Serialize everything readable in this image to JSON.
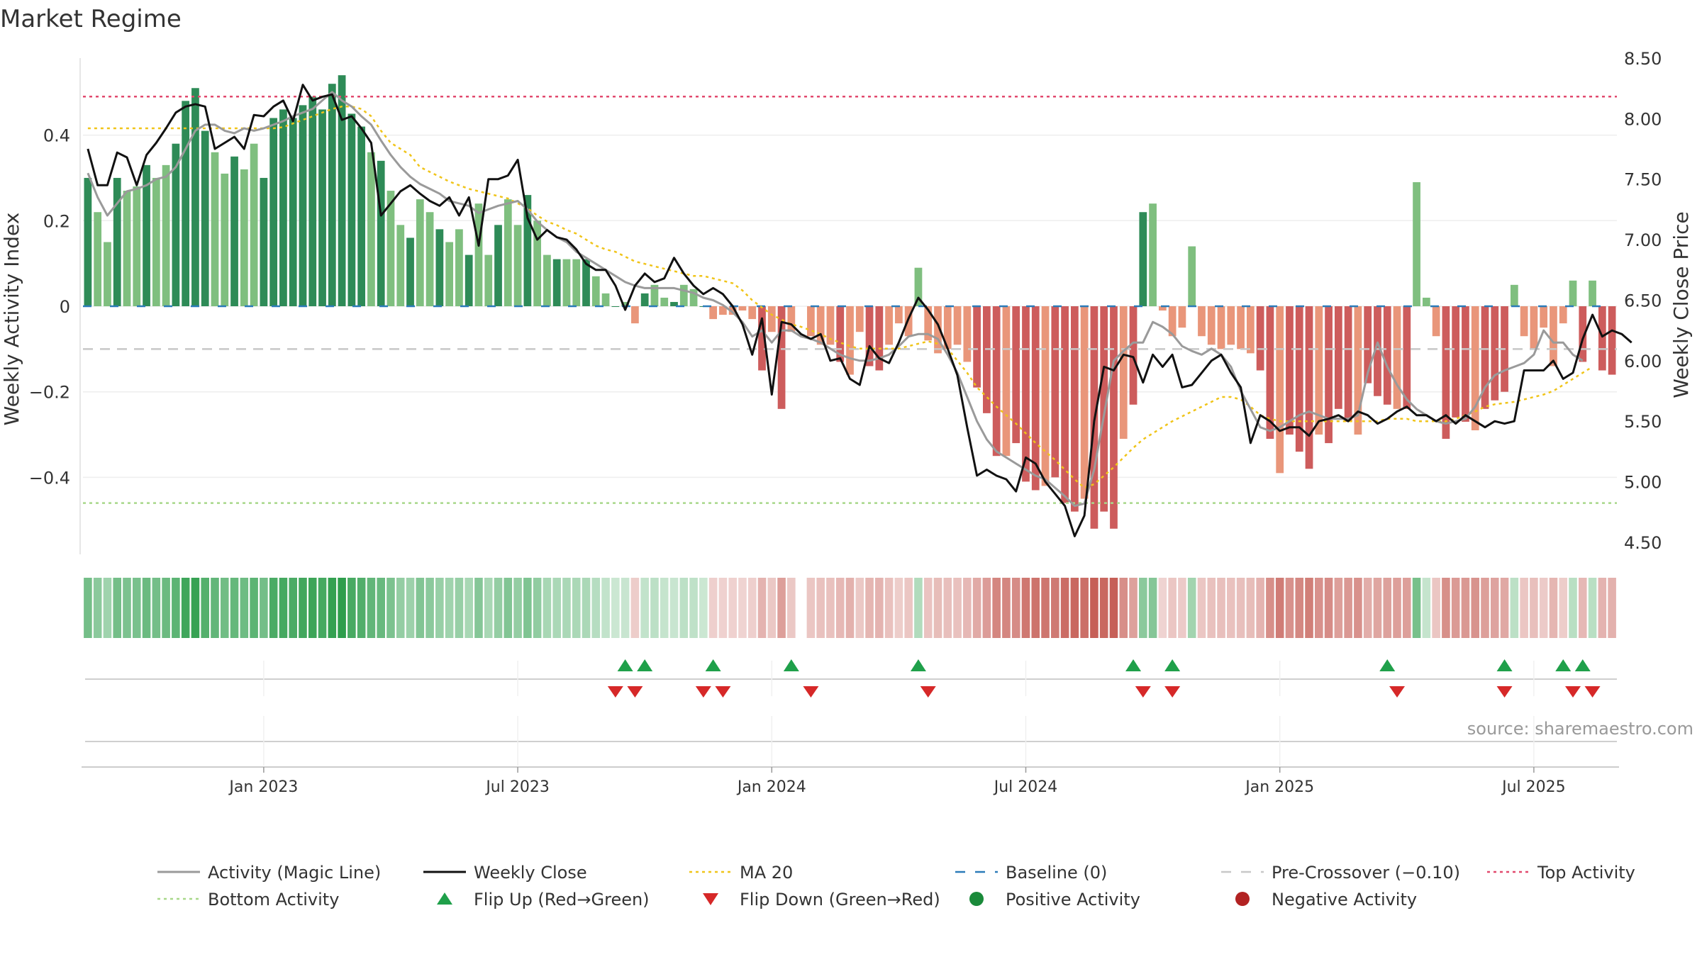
{
  "chart_data": {
    "type": "bar",
    "title": "Market Regime",
    "ylabel": "Weekly Activity Index",
    "y2label": "Weekly Close Price",
    "ylim": [
      -0.58,
      0.58
    ],
    "y2lim": [
      4.4,
      8.5
    ],
    "yticks": [
      0.4,
      0.2,
      0,
      -0.2,
      -0.4
    ],
    "yticklabels": [
      "0.4",
      "0.2",
      "0",
      "−0.2",
      "−0.4"
    ],
    "y2ticks": [
      8.5,
      8.0,
      7.5,
      7.0,
      6.5,
      6.0,
      5.5,
      5.0,
      4.5
    ],
    "y2ticklabels": [
      "8.50",
      "8.00",
      "7.50",
      "7.00",
      "6.50",
      "6.00",
      "5.50",
      "5.00",
      "4.50"
    ],
    "xticks": [
      {
        "week": 18,
        "label": "Jan 2023"
      },
      {
        "week": 44,
        "label": "Jul 2023"
      },
      {
        "week": 70,
        "label": "Jan 2024"
      },
      {
        "week": 96,
        "label": "Jul 2024"
      },
      {
        "week": 122,
        "label": "Jan 2025"
      },
      {
        "week": 148,
        "label": "Jul 2025"
      }
    ],
    "top_activity": 0.49,
    "bottom_activity": -0.46,
    "pre_crossover": -0.1,
    "baseline": 0,
    "activity": [
      0.3,
      0.22,
      0.15,
      0.3,
      0.27,
      0.28,
      0.33,
      0.3,
      0.33,
      0.38,
      0.48,
      0.51,
      0.41,
      0.36,
      0.31,
      0.35,
      0.32,
      0.38,
      0.3,
      0.44,
      0.46,
      0.44,
      0.47,
      0.49,
      0.46,
      0.52,
      0.54,
      0.45,
      0.42,
      0.36,
      0.34,
      0.27,
      0.19,
      0.16,
      0.25,
      0.22,
      0.18,
      0.15,
      0.18,
      0.12,
      0.24,
      0.12,
      0.19,
      0.25,
      0.19,
      0.26,
      0.2,
      0.12,
      0.11,
      0.11,
      0.11,
      0.11,
      0.07,
      0.03,
      0.0,
      0.01,
      -0.04,
      0.03,
      0.05,
      0.02,
      0.01,
      0.05,
      0.04,
      0.0,
      -0.03,
      -0.02,
      -0.02,
      -0.01,
      -0.03,
      -0.15,
      -0.06,
      -0.24,
      -0.06,
      0.04,
      -0.07,
      -0.09,
      -0.09,
      -0.13,
      -0.16,
      -0.06,
      -0.14,
      -0.15,
      -0.09,
      -0.04,
      -0.07,
      0.09,
      -0.08,
      -0.11,
      -0.1,
      -0.09,
      -0.13,
      -0.19,
      -0.25,
      -0.35,
      -0.35,
      -0.32,
      -0.41,
      -0.43,
      -0.42,
      -0.4,
      -0.46,
      -0.48,
      -0.45,
      -0.52,
      -0.48,
      -0.52,
      -0.31,
      -0.23,
      0.22,
      0.24,
      -0.01,
      -0.07,
      -0.05,
      0.14,
      -0.07,
      -0.09,
      -0.1,
      -0.09,
      -0.1,
      -0.11,
      -0.15,
      -0.31,
      -0.39,
      -0.3,
      -0.34,
      -0.38,
      -0.3,
      -0.32,
      -0.24,
      -0.27,
      -0.3,
      -0.18,
      -0.21,
      -0.23,
      -0.24,
      -0.24,
      0.29,
      0.02,
      -0.07,
      -0.31,
      -0.26,
      -0.27,
      -0.29,
      -0.24,
      -0.22,
      -0.2,
      0.05,
      -0.07,
      -0.1,
      -0.05,
      -0.14,
      -0.04,
      0.06,
      -0.13,
      0.06,
      -0.15,
      -0.16
    ],
    "close": [
      7.75,
      7.45,
      7.45,
      7.72,
      7.68,
      7.45,
      7.7,
      7.8,
      7.92,
      8.05,
      8.1,
      8.12,
      8.1,
      7.75,
      7.8,
      7.85,
      7.75,
      8.03,
      8.02,
      8.1,
      8.15,
      7.98,
      8.28,
      8.15,
      8.18,
      8.2,
      7.99,
      8.02,
      7.92,
      7.8,
      7.2,
      7.3,
      7.4,
      7.45,
      7.38,
      7.32,
      7.28,
      7.35,
      7.2,
      7.35,
      6.95,
      7.5,
      7.5,
      7.53,
      7.66,
      7.18,
      7.0,
      7.08,
      7.02,
      7.0,
      6.92,
      6.8,
      6.75,
      6.75,
      6.62,
      6.42,
      6.62,
      6.72,
      6.65,
      6.68,
      6.85,
      6.72,
      6.62,
      6.55,
      6.6,
      6.55,
      6.45,
      6.3,
      6.05,
      6.35,
      5.72,
      6.32,
      6.3,
      6.22,
      6.18,
      6.22,
      6.0,
      6.02,
      5.85,
      5.8,
      6.12,
      6.02,
      5.98,
      6.15,
      6.35,
      6.52,
      6.42,
      6.3,
      6.1,
      5.88,
      5.45,
      5.05,
      5.1,
      5.05,
      5.02,
      4.92,
      5.2,
      5.15,
      5.0,
      4.9,
      4.8,
      4.55,
      4.72,
      5.5,
      5.95,
      5.92,
      6.05,
      6.03,
      5.82,
      6.05,
      5.95,
      6.05,
      5.78,
      5.8,
      5.9,
      6.0,
      6.05,
      5.9,
      5.78,
      5.32,
      5.55,
      5.5,
      5.42,
      5.45,
      5.45,
      5.38,
      5.5,
      5.52,
      5.55,
      5.5,
      5.58,
      5.55,
      5.48,
      5.52,
      5.58,
      5.62,
      5.55,
      5.55,
      5.5,
      5.55,
      5.48,
      5.55,
      5.5,
      5.45,
      5.5,
      5.48,
      5.5,
      5.92,
      5.92,
      5.92,
      6.0,
      5.85,
      5.9,
      6.18,
      6.38,
      6.2,
      6.25,
      6.22,
      6.15
    ],
    "magic": [
      7.55,
      7.35,
      7.2,
      7.3,
      7.4,
      7.42,
      7.45,
      7.5,
      7.52,
      7.6,
      7.75,
      7.9,
      7.95,
      7.95,
      7.9,
      7.88,
      7.92,
      7.9,
      7.92,
      7.95,
      7.98,
      8.02,
      8.05,
      8.08,
      8.15,
      8.22,
      8.15,
      8.1,
      8.02,
      7.95,
      7.82,
      7.7,
      7.6,
      7.52,
      7.46,
      7.42,
      7.38,
      7.32,
      7.3,
      7.28,
      7.22,
      7.25,
      7.28,
      7.3,
      7.32,
      7.25,
      7.15,
      7.08,
      7.02,
      6.98,
      6.9,
      6.85,
      6.8,
      6.75,
      6.7,
      6.65,
      6.62,
      6.6,
      6.6,
      6.6,
      6.6,
      6.58,
      6.56,
      6.52,
      6.5,
      6.46,
      6.4,
      6.32,
      6.2,
      6.25,
      6.15,
      6.25,
      6.25,
      6.2,
      6.18,
      6.15,
      6.1,
      6.05,
      6.02,
      6.0,
      6.0,
      6.02,
      6.05,
      6.12,
      6.2,
      6.22,
      6.22,
      6.18,
      6.05,
      5.9,
      5.7,
      5.5,
      5.35,
      5.25,
      5.2,
      5.15,
      5.1,
      5.05,
      5.02,
      4.95,
      4.88,
      4.8,
      4.82,
      5.1,
      5.55,
      6.0,
      6.08,
      6.15,
      6.15,
      6.32,
      6.28,
      6.22,
      6.12,
      6.08,
      6.05,
      6.1,
      6.05,
      5.95,
      5.75,
      5.6,
      5.45,
      5.42,
      5.45,
      5.5,
      5.55,
      5.58,
      5.55,
      5.52,
      5.52,
      5.52,
      5.55,
      5.9,
      6.15,
      5.95,
      5.8,
      5.68,
      5.6,
      5.55,
      5.5,
      5.48,
      5.5,
      5.52,
      5.62,
      5.78,
      5.88,
      5.92,
      5.95,
      5.98,
      6.05,
      6.25,
      6.15,
      6.15,
      6.05,
      6.0
    ],
    "ma20": [
      7.92,
      7.92,
      7.92,
      7.92,
      7.92,
      7.92,
      7.92,
      7.92,
      7.92,
      7.92,
      7.92,
      7.92,
      7.92,
      7.92,
      7.92,
      7.92,
      7.92,
      7.92,
      7.92,
      7.92,
      7.93,
      7.96,
      7.99,
      8.02,
      8.05,
      8.08,
      8.1,
      8.1,
      8.08,
      8.02,
      7.9,
      7.8,
      7.75,
      7.7,
      7.6,
      7.56,
      7.52,
      7.48,
      7.45,
      7.42,
      7.4,
      7.38,
      7.36,
      7.34,
      7.3,
      7.26,
      7.2,
      7.15,
      7.12,
      7.08,
      7.05,
      7.0,
      6.95,
      6.92,
      6.9,
      6.86,
      6.82,
      6.8,
      6.78,
      6.76,
      6.74,
      6.72,
      6.7,
      6.7,
      6.68,
      6.66,
      6.64,
      6.58,
      6.5,
      6.44,
      6.38,
      6.34,
      6.3,
      6.28,
      6.25,
      6.22,
      6.18,
      6.15,
      6.12,
      6.1,
      6.1,
      6.1,
      6.1,
      6.1,
      6.12,
      6.14,
      6.16,
      6.14,
      6.1,
      6.0,
      5.9,
      5.78,
      5.7,
      5.62,
      5.55,
      5.48,
      5.4,
      5.32,
      5.25,
      5.18,
      5.1,
      5.02,
      4.95,
      4.98,
      5.05,
      5.12,
      5.2,
      5.28,
      5.35,
      5.4,
      5.45,
      5.5,
      5.54,
      5.58,
      5.62,
      5.66,
      5.7,
      5.7,
      5.68,
      5.62,
      5.55,
      5.52,
      5.5,
      5.5,
      5.5,
      5.5,
      5.5,
      5.5,
      5.5,
      5.5,
      5.5,
      5.5,
      5.5,
      5.52,
      5.52,
      5.52,
      5.5,
      5.5,
      5.5,
      5.5,
      5.52,
      5.55,
      5.58,
      5.62,
      5.64,
      5.65,
      5.66,
      5.68,
      5.7,
      5.72,
      5.75,
      5.8,
      5.85,
      5.9,
      5.95
    ],
    "gap_week": 73,
    "flip_up": [
      55,
      57,
      64,
      72,
      85,
      107,
      111,
      133,
      145,
      151,
      153
    ],
    "flip_down": [
      54,
      56,
      63,
      65,
      74,
      86,
      108,
      111,
      134,
      145,
      152,
      154
    ],
    "source": "source: sharemaestro.com",
    "legend": [
      {
        "label": "Activity (Magic Line)",
        "style": "line",
        "color": "#9a9a9a"
      },
      {
        "label": "Weekly Close",
        "style": "line",
        "color": "#111111"
      },
      {
        "label": "MA 20",
        "style": "dotted",
        "color": "#f0c419"
      },
      {
        "label": "Baseline (0)",
        "style": "dashed",
        "color": "#2b7bb9"
      },
      {
        "label": "Pre-Crossover (−0.10)",
        "style": "dashed",
        "color": "#c8c8c8"
      },
      {
        "label": "Top Activity",
        "style": "dotted",
        "color": "#e24a6e"
      },
      {
        "label": "Bottom Activity",
        "style": "dotted",
        "color": "#a8d88a"
      },
      {
        "label": "Flip Up (Red→Green)",
        "style": "triangle-up",
        "color": "#1fa04a"
      },
      {
        "label": "Flip Down (Green→Red)",
        "style": "triangle-down",
        "color": "#d62828"
      },
      {
        "label": "Positive Activity",
        "style": "dot",
        "color": "#1a8a3a"
      },
      {
        "label": "Negative Activity",
        "style": "dot",
        "color": "#b22222"
      }
    ],
    "colors": {
      "bar_pos_dark": "#2e8b57",
      "bar_pos_light": "#7fbf7f",
      "bar_neg_dark": "#cd5c5c",
      "bar_neg_light": "#e9967a",
      "grid": "#eeeeee"
    }
  }
}
